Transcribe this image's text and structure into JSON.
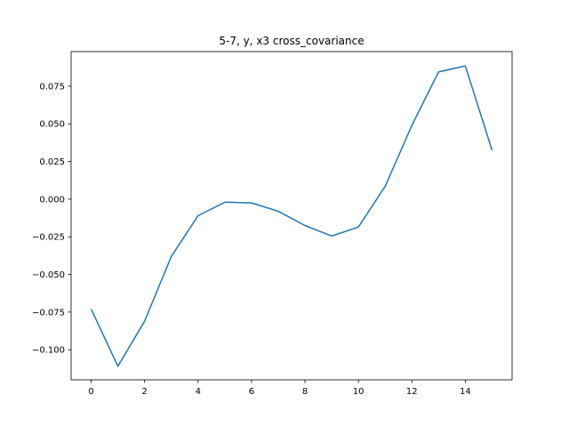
{
  "chart_data": {
    "type": "line",
    "title": "5-7, y, x3 cross_covariance",
    "xlabel": "",
    "ylabel": "",
    "xlim": [
      -0.75,
      15.75
    ],
    "ylim": [
      -0.12,
      0.098
    ],
    "x_ticks": [
      0,
      2,
      4,
      6,
      8,
      10,
      12,
      14
    ],
    "x_tick_labels": [
      "0",
      "2",
      "4",
      "6",
      "8",
      "10",
      "12",
      "14"
    ],
    "y_ticks": [
      -0.1,
      -0.075,
      -0.05,
      -0.025,
      0.0,
      0.025,
      0.05,
      0.075
    ],
    "y_tick_labels": [
      "−0.100",
      "−0.075",
      "−0.050",
      "−0.025",
      "0.000",
      "0.025",
      "0.050",
      "0.075"
    ],
    "grid": false,
    "legend": "none",
    "series": [
      {
        "color": "#1f77b4",
        "x": [
          0,
          1,
          2,
          3,
          4,
          5,
          6,
          7,
          8,
          9,
          10,
          11,
          12,
          13,
          14,
          15
        ],
        "values": [
          -0.073,
          -0.111,
          -0.081,
          -0.038,
          -0.011,
          -0.002,
          -0.0025,
          -0.008,
          -0.0175,
          -0.0245,
          -0.0185,
          0.0085,
          0.049,
          0.0845,
          0.0885,
          0.0325
        ]
      }
    ]
  }
}
